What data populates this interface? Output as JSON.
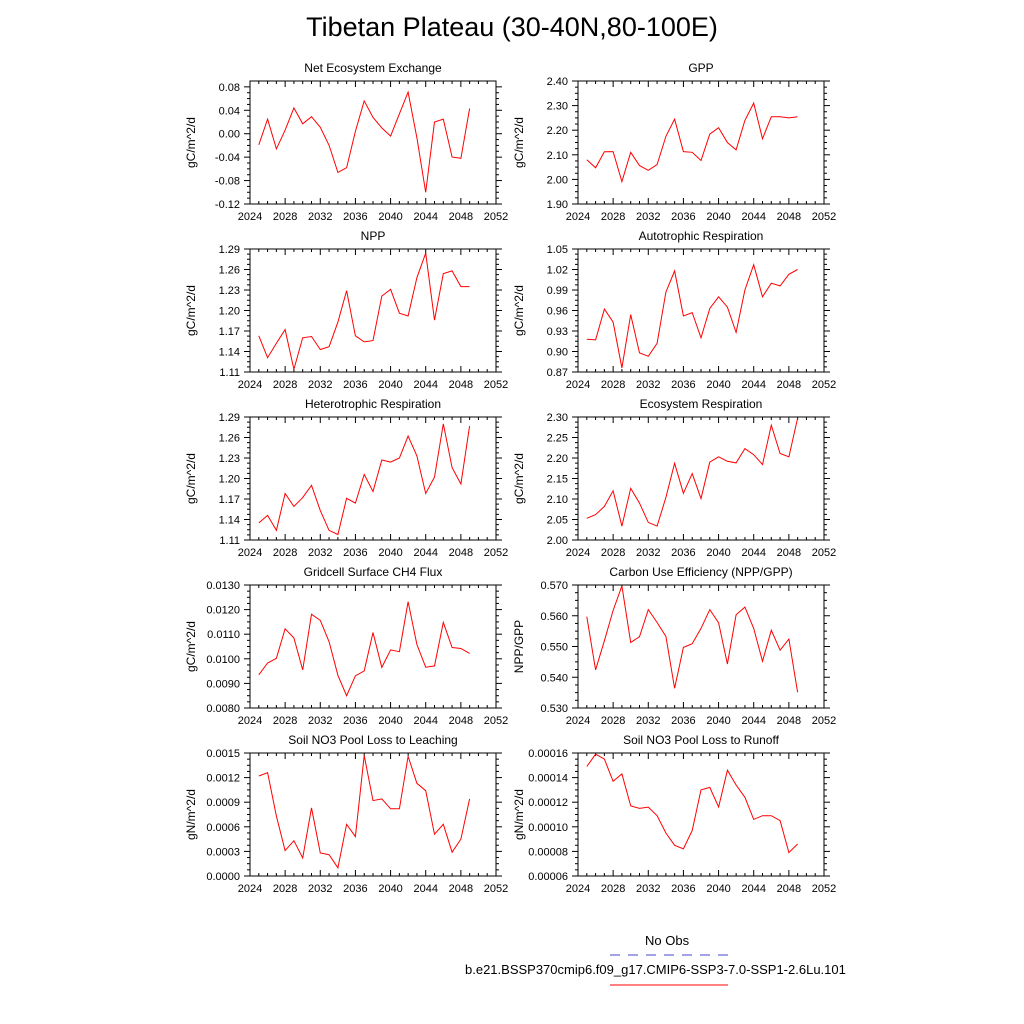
{
  "title": "Tibetan Plateau (30-40N,80-100E)",
  "colors": {
    "series": "#ff0000",
    "obs": "#4444cc",
    "axis": "#000000"
  },
  "legend": {
    "obs_label": "No Obs",
    "model_label": "b.e21.BSSP370cmip6.f09_g17.CMIP6-SSP3-7.0-SSP1-2.6Lu.101"
  },
  "chart_data": [
    {
      "type": "line",
      "title": "Net Ecosystem Exchange",
      "ylabel": "gC/m^2/d",
      "xlim": [
        2024,
        2052
      ],
      "xticks": [
        "2024",
        "2028",
        "2032",
        "2036",
        "2040",
        "2044",
        "2048",
        "2052"
      ],
      "ylim": [
        -0.12,
        0.09
      ],
      "yticks": [
        "0.08",
        "0.04",
        "0.00",
        "-0.04",
        "-0.08",
        "-0.12"
      ],
      "x": [
        2025,
        2026,
        2027,
        2028,
        2029,
        2030,
        2031,
        2032,
        2033,
        2034,
        2035,
        2036,
        2037,
        2038,
        2039,
        2040,
        2041,
        2042,
        2043,
        2044,
        2045,
        2046,
        2047,
        2048,
        2049
      ],
      "values": [
        -0.019,
        0.025,
        -0.026,
        0.006,
        0.044,
        0.017,
        0.029,
        0.011,
        -0.02,
        -0.066,
        -0.058,
        0.004,
        0.056,
        0.028,
        0.01,
        -0.004,
        0.034,
        0.071,
        -0.007,
        -0.1,
        0.02,
        0.025,
        -0.04,
        -0.042,
        0.043
      ]
    },
    {
      "type": "line",
      "title": "GPP",
      "ylabel": "gC/m^2/d",
      "xlim": [
        2024,
        2052
      ],
      "xticks": [
        "2024",
        "2028",
        "2032",
        "2036",
        "2040",
        "2044",
        "2048",
        "2052"
      ],
      "ylim": [
        1.9,
        2.4
      ],
      "yticks": [
        "2.40",
        "2.30",
        "2.20",
        "2.10",
        "2.00",
        "1.90"
      ],
      "x": [
        2025,
        2026,
        2027,
        2028,
        2029,
        2030,
        2031,
        2032,
        2033,
        2034,
        2035,
        2036,
        2037,
        2038,
        2039,
        2040,
        2041,
        2042,
        2043,
        2044,
        2045,
        2046,
        2047,
        2048,
        2049
      ],
      "values": [
        2.08,
        2.047,
        2.112,
        2.113,
        1.991,
        2.11,
        2.056,
        2.037,
        2.06,
        2.175,
        2.245,
        2.113,
        2.11,
        2.077,
        2.184,
        2.21,
        2.15,
        2.12,
        2.24,
        2.31,
        2.165,
        2.255,
        2.255,
        2.25,
        2.255
      ]
    },
    {
      "type": "line",
      "title": "NPP",
      "ylabel": "gC/m^2/d",
      "xlim": [
        2024,
        2052
      ],
      "xticks": [
        "2024",
        "2028",
        "2032",
        "2036",
        "2040",
        "2044",
        "2048",
        "2052"
      ],
      "ylim": [
        1.11,
        1.29
      ],
      "yticks": [
        "1.29",
        "1.26",
        "1.23",
        "1.20",
        "1.17",
        "1.14",
        "1.11"
      ],
      "x": [
        2025,
        2026,
        2027,
        2028,
        2029,
        2030,
        2031,
        2032,
        2033,
        2034,
        2035,
        2036,
        2037,
        2038,
        2039,
        2040,
        2041,
        2042,
        2043,
        2044,
        2045,
        2046,
        2047,
        2048,
        2049
      ],
      "values": [
        1.163,
        1.131,
        1.152,
        1.172,
        1.114,
        1.16,
        1.162,
        1.143,
        1.147,
        1.183,
        1.229,
        1.163,
        1.154,
        1.156,
        1.221,
        1.231,
        1.196,
        1.192,
        1.248,
        1.284,
        1.186,
        1.254,
        1.258,
        1.235,
        1.235
      ]
    },
    {
      "type": "line",
      "title": "Autotrophic Respiration",
      "ylabel": "gC/m^2/d",
      "xlim": [
        2024,
        2052
      ],
      "xticks": [
        "2024",
        "2028",
        "2032",
        "2036",
        "2040",
        "2044",
        "2048",
        "2052"
      ],
      "ylim": [
        0.87,
        1.05
      ],
      "yticks": [
        "1.05",
        "1.02",
        "0.99",
        "0.96",
        "0.93",
        "0.90",
        "0.87"
      ],
      "x": [
        2025,
        2026,
        2027,
        2028,
        2029,
        2030,
        2031,
        2032,
        2033,
        2034,
        2035,
        2036,
        2037,
        2038,
        2039,
        2040,
        2041,
        2042,
        2043,
        2044,
        2045,
        2046,
        2047,
        2048,
        2049
      ],
      "values": [
        0.918,
        0.917,
        0.962,
        0.943,
        0.876,
        0.954,
        0.898,
        0.893,
        0.912,
        0.987,
        1.018,
        0.952,
        0.957,
        0.92,
        0.963,
        0.98,
        0.965,
        0.928,
        0.99,
        1.027,
        0.98,
        1.0,
        0.996,
        1.013,
        1.02
      ]
    },
    {
      "type": "line",
      "title": "Heterotrophic Respiration",
      "ylabel": "gC/m^2/d",
      "xlim": [
        2024,
        2052
      ],
      "xticks": [
        "2024",
        "2028",
        "2032",
        "2036",
        "2040",
        "2044",
        "2048",
        "2052"
      ],
      "ylim": [
        1.11,
        1.29
      ],
      "yticks": [
        "1.29",
        "1.26",
        "1.23",
        "1.20",
        "1.17",
        "1.14",
        "1.11"
      ],
      "x": [
        2025,
        2026,
        2027,
        2028,
        2029,
        2030,
        2031,
        2032,
        2033,
        2034,
        2035,
        2036,
        2037,
        2038,
        2039,
        2040,
        2041,
        2042,
        2043,
        2044,
        2045,
        2046,
        2047,
        2048,
        2049
      ],
      "values": [
        1.135,
        1.146,
        1.124,
        1.178,
        1.159,
        1.172,
        1.19,
        1.153,
        1.124,
        1.118,
        1.171,
        1.164,
        1.206,
        1.181,
        1.227,
        1.224,
        1.23,
        1.262,
        1.233,
        1.178,
        1.202,
        1.28,
        1.216,
        1.192,
        1.277
      ]
    },
    {
      "type": "line",
      "title": "Ecosystem Respiration",
      "ylabel": "gC/m^2/d",
      "xlim": [
        2024,
        2052
      ],
      "xticks": [
        "2024",
        "2028",
        "2032",
        "2036",
        "2040",
        "2044",
        "2048",
        "2052"
      ],
      "ylim": [
        2.0,
        2.3
      ],
      "yticks": [
        "2.30",
        "2.25",
        "2.20",
        "2.15",
        "2.10",
        "2.05",
        "2.00"
      ],
      "x": [
        2025,
        2026,
        2027,
        2028,
        2029,
        2030,
        2031,
        2032,
        2033,
        2034,
        2035,
        2036,
        2037,
        2038,
        2039,
        2040,
        2041,
        2042,
        2043,
        2044,
        2045,
        2046,
        2047,
        2048,
        2049
      ],
      "values": [
        2.053,
        2.062,
        2.082,
        2.12,
        2.034,
        2.126,
        2.09,
        2.043,
        2.034,
        2.104,
        2.187,
        2.114,
        2.162,
        2.101,
        2.19,
        2.203,
        2.192,
        2.188,
        2.223,
        2.208,
        2.184,
        2.28,
        2.211,
        2.203,
        2.297
      ]
    },
    {
      "type": "line",
      "title": "Gridcell Surface CH4 Flux",
      "ylabel": "gC/m^2/d",
      "xlim": [
        2024,
        2052
      ],
      "xticks": [
        "2024",
        "2028",
        "2032",
        "2036",
        "2040",
        "2044",
        "2048",
        "2052"
      ],
      "ylim": [
        0.008,
        0.013
      ],
      "yticks": [
        "0.0130",
        "0.0120",
        "0.0110",
        "0.0100",
        "0.0090",
        "0.0080"
      ],
      "x": [
        2025,
        2026,
        2027,
        2028,
        2029,
        2030,
        2031,
        2032,
        2033,
        2034,
        2035,
        2036,
        2037,
        2038,
        2039,
        2040,
        2041,
        2042,
        2043,
        2044,
        2045,
        2046,
        2047,
        2048,
        2049
      ],
      "values": [
        0.00935,
        0.00983,
        0.01002,
        0.01122,
        0.01085,
        0.00955,
        0.01181,
        0.01156,
        0.01069,
        0.00933,
        0.0085,
        0.00931,
        0.00951,
        0.01107,
        0.00965,
        0.01036,
        0.01029,
        0.01232,
        0.01058,
        0.00966,
        0.00971,
        0.01148,
        0.01046,
        0.01042,
        0.01022
      ]
    },
    {
      "type": "line",
      "title": "Carbon Use Efficiency (NPP/GPP)",
      "ylabel": "NPP/GPP",
      "xlim": [
        2024,
        2052
      ],
      "xticks": [
        "2024",
        "2028",
        "2032",
        "2036",
        "2040",
        "2044",
        "2048",
        "2052"
      ],
      "ylim": [
        0.53,
        0.57
      ],
      "yticks": [
        "0.570",
        "0.560",
        "0.550",
        "0.540",
        "0.530"
      ],
      "x": [
        2025,
        2026,
        2027,
        2028,
        2029,
        2030,
        2031,
        2032,
        2033,
        2034,
        2035,
        2036,
        2037,
        2038,
        2039,
        2040,
        2041,
        2042,
        2043,
        2044,
        2045,
        2046,
        2047,
        2048,
        2049
      ],
      "values": [
        0.5597,
        0.5424,
        0.5519,
        0.5617,
        0.5697,
        0.5513,
        0.5532,
        0.562,
        0.5578,
        0.5533,
        0.5364,
        0.5497,
        0.5509,
        0.5559,
        0.562,
        0.5577,
        0.5443,
        0.5603,
        0.5628,
        0.5559,
        0.5452,
        0.5553,
        0.5488,
        0.5524,
        0.5351
      ]
    },
    {
      "type": "line",
      "title": "Soil NO3 Pool Loss to Leaching",
      "ylabel": "gN/m^2/d",
      "xlim": [
        2024,
        2052
      ],
      "xticks": [
        "2024",
        "2028",
        "2032",
        "2036",
        "2040",
        "2044",
        "2048",
        "2052"
      ],
      "ylim": [
        0.0,
        0.0015
      ],
      "yticks": [
        "0.0015",
        "0.0012",
        "0.0009",
        "0.0006",
        "0.0003",
        "0.0000"
      ],
      "x": [
        2025,
        2026,
        2027,
        2028,
        2029,
        2030,
        2031,
        2032,
        2033,
        2034,
        2035,
        2036,
        2037,
        2038,
        2039,
        2040,
        2041,
        2042,
        2043,
        2044,
        2045,
        2046,
        2047,
        2048,
        2049
      ],
      "values": [
        0.00122,
        0.00126,
        0.00073,
        0.00031,
        0.00043,
        0.00022,
        0.00083,
        0.00028,
        0.00026,
        0.0001,
        0.00063,
        0.00048,
        0.00147,
        0.00092,
        0.00094,
        0.00082,
        0.00082,
        0.00146,
        0.00113,
        0.00104,
        0.00051,
        0.00063,
        0.00029,
        0.00045,
        0.00094
      ]
    },
    {
      "type": "line",
      "title": "Soil NO3 Pool Loss to Runoff",
      "ylabel": "gN/m^2/d",
      "xlim": [
        2024,
        2052
      ],
      "xticks": [
        "2024",
        "2028",
        "2032",
        "2036",
        "2040",
        "2044",
        "2048",
        "2052"
      ],
      "ylim": [
        6e-05,
        0.00016
      ],
      "yticks": [
        "0.00016",
        "0.00014",
        "0.00012",
        "0.00010",
        "0.00008",
        "0.00006"
      ],
      "x": [
        2025,
        2026,
        2027,
        2028,
        2029,
        2030,
        2031,
        2032,
        2033,
        2034,
        2035,
        2036,
        2037,
        2038,
        2039,
        2040,
        2041,
        2042,
        2043,
        2044,
        2045,
        2046,
        2047,
        2048,
        2049
      ],
      "values": [
        0.000149,
        0.000159,
        0.000155,
        0.000137,
        0.000143,
        0.000117,
        0.000115,
        0.000116,
        0.000109,
        9.5e-05,
        8.5e-05,
        8.2e-05,
        9.7e-05,
        0.00013,
        0.000132,
        0.000116,
        0.000146,
        0.000134,
        0.000124,
        0.000106,
        0.000109,
        0.000109,
        0.000105,
        7.9e-05,
        8.6e-05
      ]
    }
  ]
}
